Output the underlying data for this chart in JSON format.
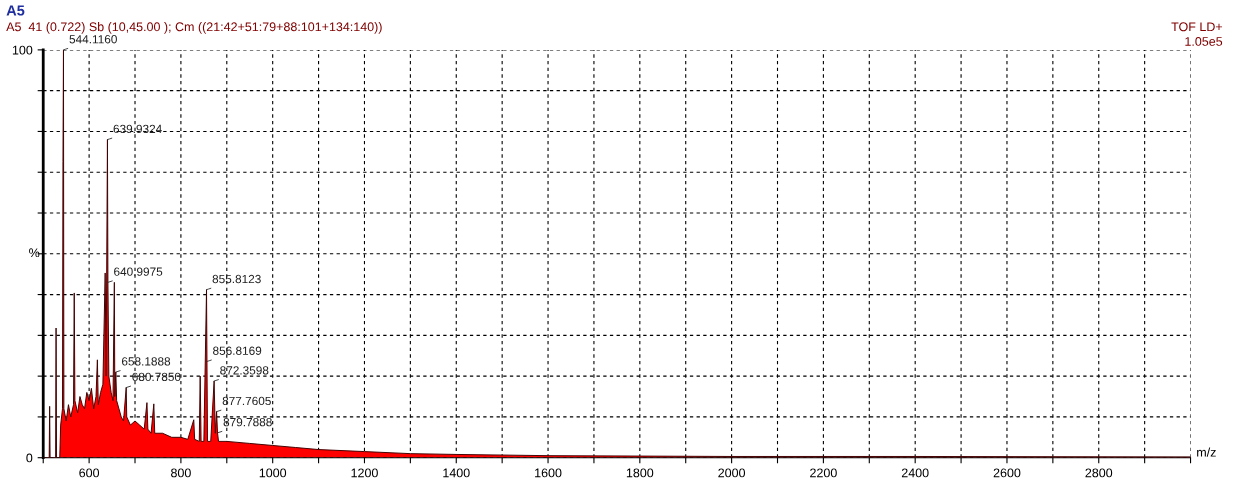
{
  "chart_data": {
    "type": "area",
    "title": "A5",
    "subtitle": "A5  41 (0.722) Sb (10,45.00 ); Cm ((21:42+51:79+88:101+134:140))",
    "xlabel": "m/z",
    "ylabel": "%",
    "series": [
      {
        "color": "#ff0000",
        "x": [
          500,
          513,
          514,
          515,
          527,
          528,
          529,
          536,
          538,
          542,
          543,
          544.116,
          545,
          550,
          555,
          560,
          566,
          567.6,
          569,
          575,
          580,
          585,
          590,
          595,
          600,
          605,
          610,
          615,
          618,
          620,
          625,
          630,
          635,
          637,
          639.9324,
          640.9975,
          643,
          648,
          652,
          655,
          656,
          658.1888,
          660,
          665,
          670,
          675,
          680.785,
          682,
          690,
          700,
          710,
          720,
          726,
          728,
          735,
          741,
          743,
          760,
          780,
          800,
          815,
          828,
          830,
          840,
          842,
          844,
          850,
          855.8123,
          856.8169,
          858,
          865,
          872.3598,
          875,
          877.7605,
          879.7888,
          882,
          900,
          950,
          1000,
          1050,
          1100,
          1200,
          1300,
          1400,
          1600,
          1800,
          2000,
          2400,
          3000
        ],
        "values": [
          0,
          0,
          12.6,
          0,
          0,
          31.8,
          0,
          0,
          8,
          12,
          72.6,
          100,
          12,
          9,
          13,
          10,
          13,
          40.4,
          14,
          11,
          15,
          13,
          12,
          16,
          14,
          17,
          12,
          15,
          24,
          13,
          16,
          18,
          45.3,
          20,
          78,
          43,
          20,
          16,
          14,
          43,
          15,
          21,
          14,
          12,
          10,
          9,
          17.2,
          10,
          8,
          9,
          8,
          7,
          13.5,
          7,
          6,
          13.2,
          6,
          6,
          5,
          5,
          4.5,
          9.3,
          4.5,
          4,
          20,
          4,
          4,
          41.2,
          23.6,
          4,
          4,
          18.8,
          6,
          11.3,
          6.1,
          4,
          4,
          3.5,
          3,
          2.5,
          2,
          1.5,
          1,
          0.8,
          0.5,
          0.4,
          0.3,
          0.3,
          0.2
        ]
      }
    ],
    "xlim": [
      500,
      3000
    ],
    "xticks": [
      {
        "value": 500,
        "label": null
      },
      600,
      {
        "value": 700,
        "label": null
      },
      800,
      {
        "value": 900,
        "label": null
      },
      1000,
      {
        "value": 1100,
        "label": null
      },
      1200,
      {
        "value": 1300,
        "label": null
      },
      1400,
      {
        "value": 1500,
        "label": null
      },
      1600,
      {
        "value": 1700,
        "label": null
      },
      1800,
      {
        "value": 1900,
        "label": null
      },
      2000,
      {
        "value": 2100,
        "label": null
      },
      2200,
      {
        "value": 2300,
        "label": null
      },
      2400,
      {
        "value": 2500,
        "label": null
      },
      2600,
      {
        "value": 2700,
        "label": null
      },
      2800,
      {
        "value": 2900,
        "label": null
      },
      {
        "value": 3000,
        "label": null
      }
    ],
    "ylim": [
      0,
      100
    ],
    "yticks": [
      0,
      {
        "value": 10,
        "label": null
      },
      {
        "value": 20,
        "label": null
      },
      {
        "value": 30,
        "label": null
      },
      {
        "value": 40,
        "label": null
      },
      {
        "value": 50,
        "label": null
      },
      {
        "value": 60,
        "label": null
      },
      {
        "value": 70,
        "label": null
      },
      {
        "value": 80,
        "label": null
      },
      {
        "value": 90,
        "label": null
      },
      100
    ],
    "grid": true,
    "annotations": [
      "TOF LD+",
      "1.05e5",
      {
        "text": "544.1160",
        "x": 544.116,
        "y": 100
      },
      {
        "text": "639.9324",
        "x": 639.9324,
        "y": 78
      },
      {
        "text": "640.9975",
        "x": 640.9975,
        "y": 43
      },
      {
        "text": "658.1888",
        "x": 658.1888,
        "y": 21
      },
      {
        "text": "680.7850",
        "x": 680.785,
        "y": 17.2
      },
      {
        "text": "855.8123",
        "x": 855.8123,
        "y": 41.2
      },
      {
        "text": "856.8169",
        "x": 856.8169,
        "y": 23.6
      },
      {
        "text": "872.3598",
        "x": 872.3598,
        "y": 18.8
      },
      {
        "text": "877.7605",
        "x": 877.7605,
        "y": 11.3
      },
      {
        "text": "879.7888",
        "x": 879.7888,
        "y": 6.1
      }
    ]
  }
}
